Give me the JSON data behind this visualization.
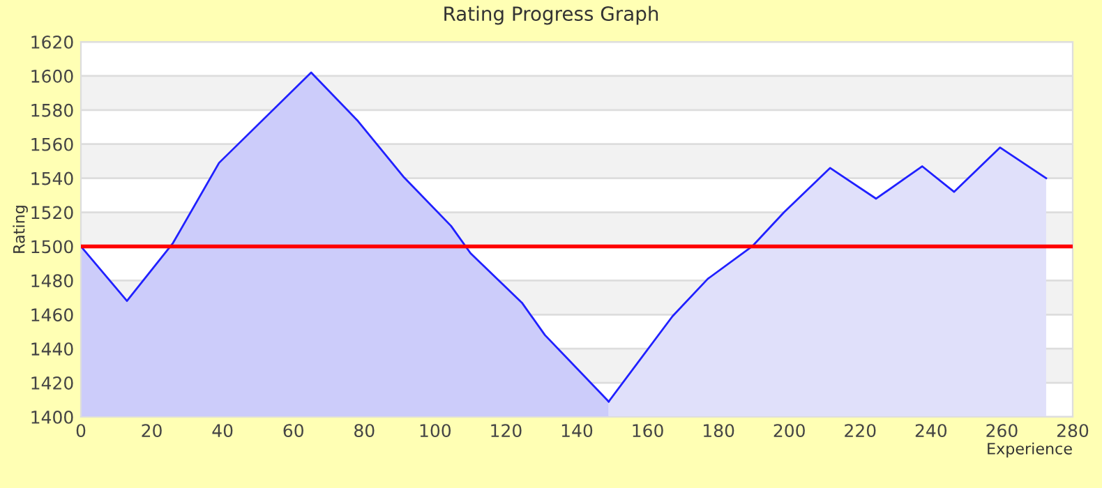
{
  "chart_data": {
    "type": "area",
    "title": "Rating Progress Graph",
    "xlabel": "Experience",
    "ylabel": "Rating",
    "series": [
      {
        "color": "#ccccfa",
        "x": [
          0,
          13,
          26,
          39,
          65,
          78,
          91,
          104.5,
          110,
          124.5,
          131,
          149
        ],
        "values": [
          1500,
          1468,
          1502,
          1549,
          1602,
          1574,
          1541,
          1512,
          1496,
          1467,
          1448,
          1409
        ]
      },
      {
        "color": "#e0e0fa",
        "x": [
          149,
          167,
          177,
          189.5,
          198.5,
          211.5,
          224.5,
          237.5,
          246.5,
          259.5,
          272.5
        ],
        "values": [
          1409,
          1459,
          1481,
          1500,
          1520,
          1546,
          1528,
          1547,
          1532,
          1558,
          1540
        ]
      }
    ],
    "xlim": [
      0,
      280
    ],
    "ylim": [
      1400,
      1620
    ],
    "xticks": [
      0,
      20,
      40,
      60,
      80,
      100,
      120,
      140,
      160,
      180,
      200,
      220,
      240,
      260,
      280
    ],
    "yticks": [
      1400,
      1420,
      1440,
      1460,
      1480,
      1500,
      1520,
      1540,
      1560,
      1580,
      1600,
      1620
    ],
    "ref_lines": [
      {
        "axis": "y",
        "value": 1500,
        "color": "#ff0000"
      }
    ],
    "bands": [
      {
        "axis": "y",
        "from": 1420,
        "to": 1440,
        "color": "#f2f2f2"
      },
      {
        "axis": "y",
        "from": 1460,
        "to": 1480,
        "color": "#f2f2f2"
      },
      {
        "axis": "y",
        "from": 1500,
        "to": 1520,
        "color": "#f2f2f2"
      },
      {
        "axis": "y",
        "from": 1540,
        "to": 1560,
        "color": "#f2f2f2"
      },
      {
        "axis": "y",
        "from": 1580,
        "to": 1600,
        "color": "#f2f2f2"
      }
    ],
    "grid": "y",
    "legend": false
  }
}
